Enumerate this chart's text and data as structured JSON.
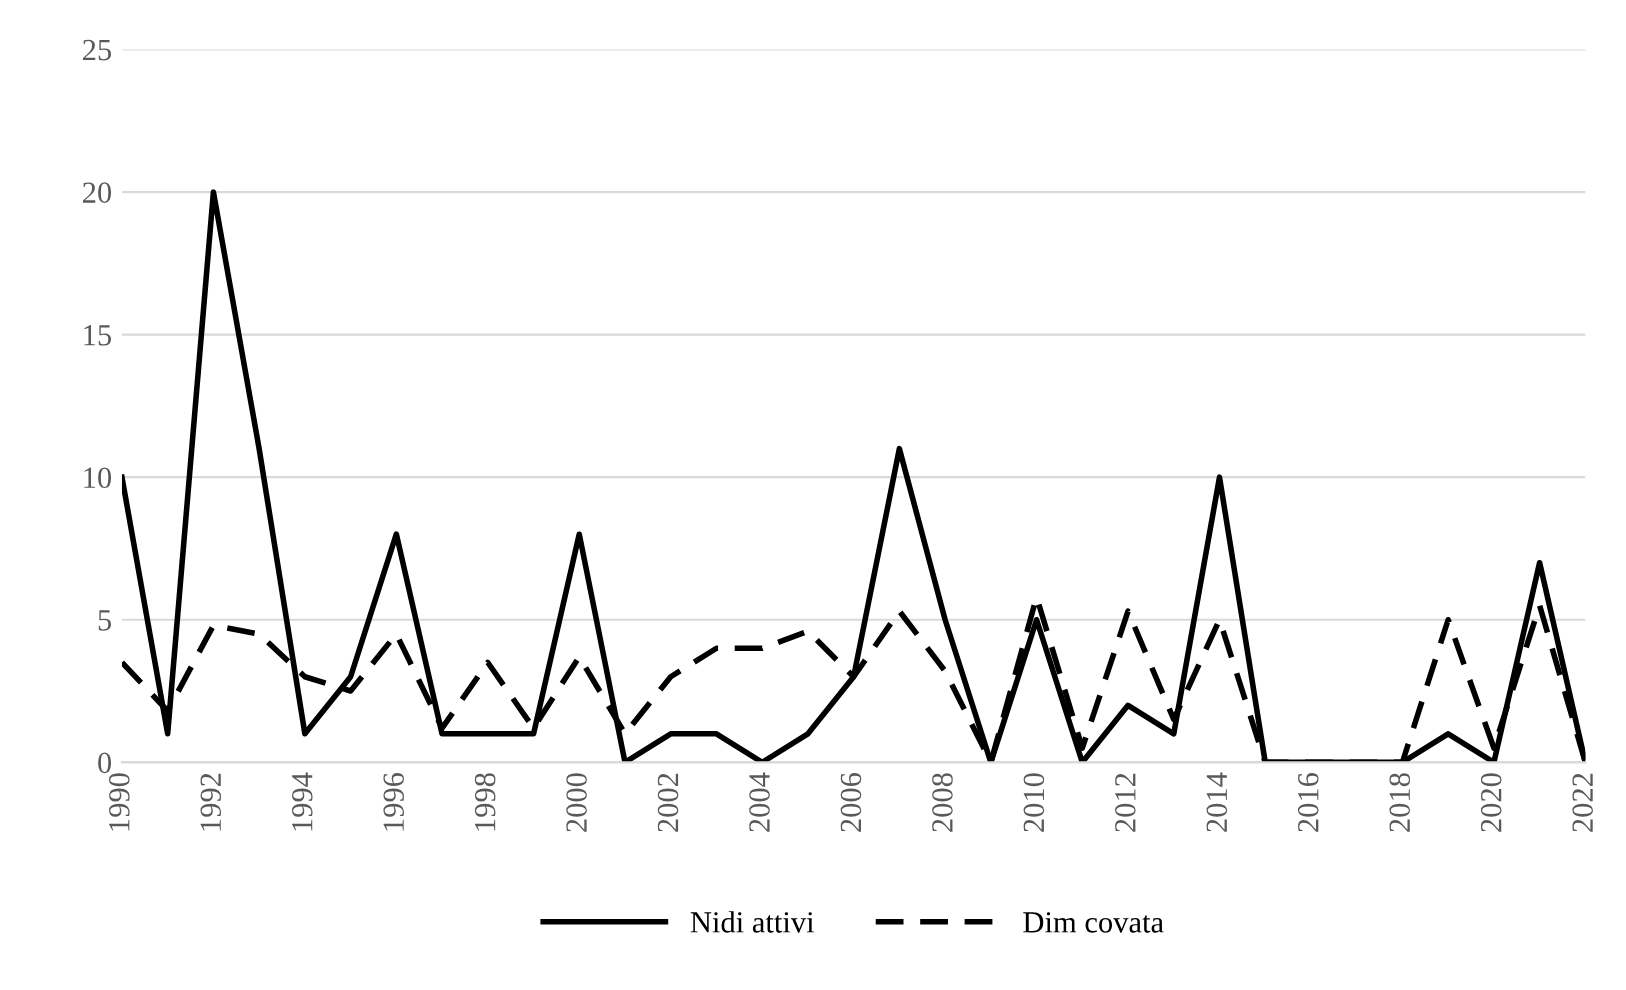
{
  "chart_data": {
    "type": "line",
    "x": [
      1990,
      1991,
      1992,
      1993,
      1994,
      1995,
      1996,
      1997,
      1998,
      1999,
      2000,
      2001,
      2002,
      2003,
      2004,
      2005,
      2006,
      2007,
      2008,
      2009,
      2010,
      2011,
      2012,
      2013,
      2014,
      2015,
      2016,
      2017,
      2018,
      2019,
      2020,
      2021,
      2022
    ],
    "series": [
      {
        "name": "Nidi attivi",
        "color": "#000000",
        "line_style": "solid",
        "values": [
          10,
          1,
          20,
          11,
          1,
          3,
          8,
          1,
          1,
          1,
          8,
          0,
          1,
          1,
          0,
          1,
          3,
          11,
          5,
          0,
          5,
          0,
          2,
          1,
          10,
          0,
          0,
          0,
          0,
          1,
          0,
          7,
          0
        ]
      },
      {
        "name": "Dim covata",
        "color": "#000000",
        "line_style": "dashed",
        "values": [
          3.5,
          1.8,
          4.8,
          4.5,
          3,
          2.5,
          4.5,
          1.2,
          3.5,
          1.2,
          3.7,
          1,
          3,
          4,
          4,
          4.6,
          3,
          5.3,
          3.2,
          0,
          5.8,
          0.5,
          5.3,
          1.5,
          5,
          0,
          0,
          0,
          0,
          5,
          0.5,
          5.5,
          0
        ]
      }
    ],
    "xlim": [
      1990,
      2022
    ],
    "xticks": [
      1990,
      1992,
      1994,
      1996,
      1998,
      2000,
      2002,
      2004,
      2006,
      2008,
      2010,
      2012,
      2014,
      2016,
      2018,
      2020,
      2022
    ],
    "ylim": [
      0,
      25
    ],
    "yticks": [
      0,
      5,
      10,
      15,
      20,
      25
    ],
    "grid": "y",
    "legend": "bottom",
    "marker": "none"
  }
}
